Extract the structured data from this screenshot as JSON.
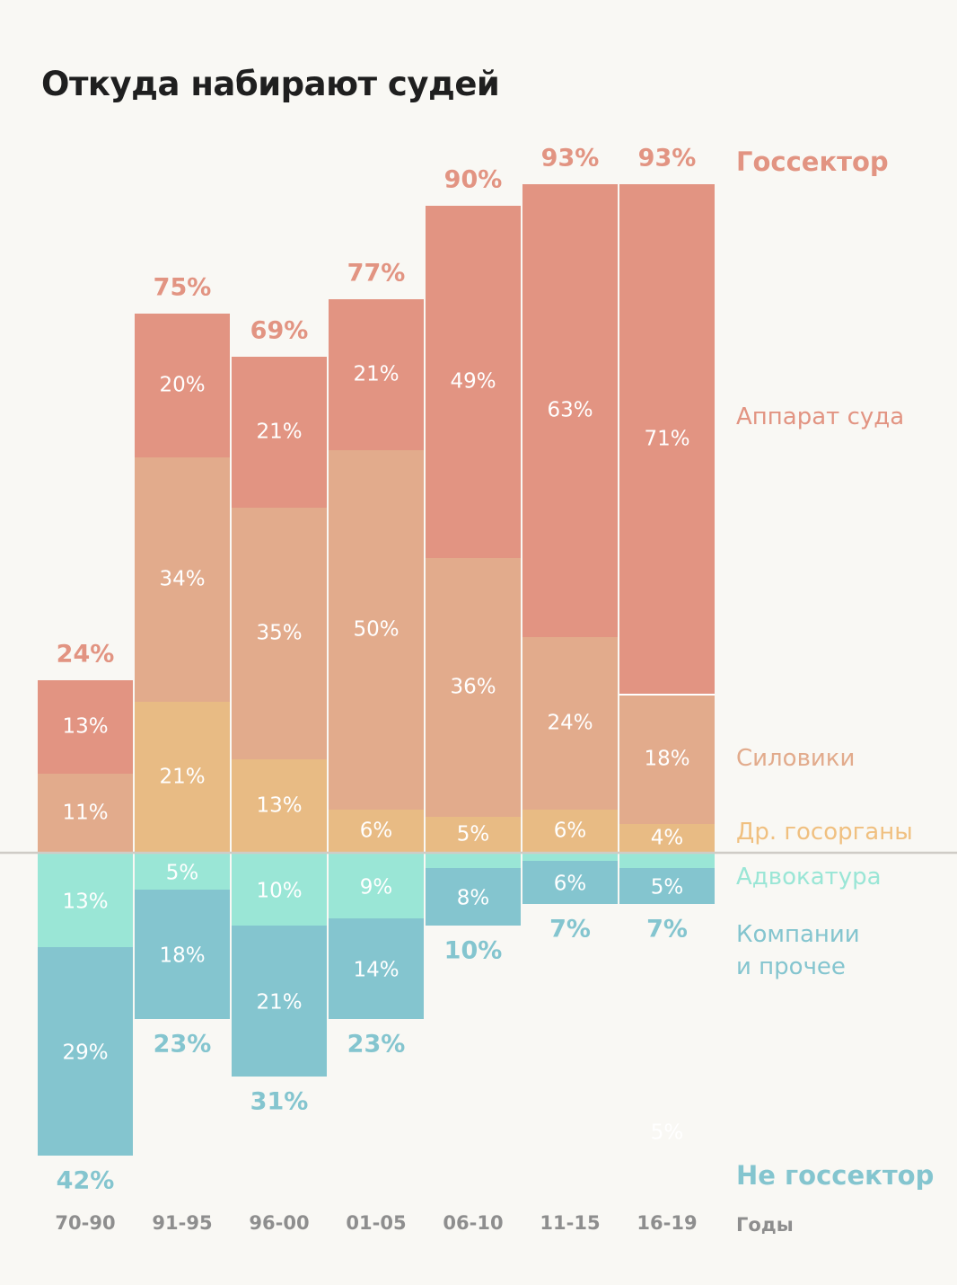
{
  "chart_data": {
    "type": "bar",
    "stacked": "diverging",
    "title": "Откуда набирают судей",
    "xlabel": "Годы",
    "categories": [
      "70-90",
      "91-95",
      "96-00",
      "01-05",
      "06-10",
      "11-15",
      "16-19"
    ],
    "groups": [
      {
        "name": "Госсектор",
        "direction": "up",
        "color": "#E29482",
        "totals": [
          24,
          75,
          69,
          77,
          90,
          93,
          93
        ]
      },
      {
        "name": "Не госсектор",
        "direction": "down",
        "color": "#84C5CF",
        "totals": [
          42,
          23,
          31,
          23,
          10,
          7,
          7
        ]
      }
    ],
    "series": [
      {
        "name": "Аппарат суда",
        "group": "Госсектор",
        "color": "#E29482",
        "values": [
          13,
          20,
          21,
          21,
          49,
          63,
          71
        ],
        "labels": [
          "13%",
          "20%",
          "21%",
          "21%",
          "49%",
          "63%",
          "71%"
        ]
      },
      {
        "name": "Силовики",
        "group": "Госсектор",
        "color": "#E2AB8C",
        "values": [
          11,
          34,
          35,
          50,
          36,
          24,
          18
        ],
        "labels": [
          "11%",
          "34%",
          "35%",
          "50%",
          "36%",
          "24%",
          "18%"
        ]
      },
      {
        "name": "Др. госорганы",
        "group": "Госсектор",
        "color": "#E8BB84",
        "values": [
          0,
          21,
          13,
          6,
          5,
          6,
          4
        ],
        "labels": [
          "",
          "21%",
          "13%",
          "6%",
          "5%",
          "6%",
          "4%"
        ]
      },
      {
        "name": "Адвокатура",
        "group": "Не госсектор",
        "color": "#9AE6D6",
        "values": [
          13,
          5,
          10,
          9,
          2,
          1,
          2
        ],
        "labels": [
          "13%",
          "5%",
          "10%",
          "9%",
          "",
          "",
          ""
        ]
      },
      {
        "name": "Компании и прочее",
        "group": "Не госсектор",
        "color": "#84C5CF",
        "values": [
          29,
          18,
          21,
          14,
          8,
          6,
          5
        ],
        "labels": [
          "29%",
          "18%",
          "21%",
          "14%",
          "8%",
          "6%",
          "5%"
        ]
      }
    ],
    "stray_label": "5%",
    "unit": "%",
    "legend_position": "right"
  },
  "legend": {
    "gos": {
      "text": "Госсектор",
      "color": "#E29482"
    },
    "court": {
      "text": "Аппарат суда",
      "color": "#E29482"
    },
    "siloviki": {
      "text": "Силовики",
      "color": "#E2AB8C"
    },
    "other": {
      "text": "Др. госорганы",
      "color": "#F0C080"
    },
    "advokatura": {
      "text": "Адвокатура",
      "color": "#9AE6D6"
    },
    "companies": {
      "text": "Компании\nи прочее",
      "color": "#84C5CF"
    },
    "non_gos": {
      "text": "Не госсектор",
      "color": "#84C5CF"
    },
    "years": {
      "text": "Годы",
      "color": "#8e8e8e"
    }
  }
}
